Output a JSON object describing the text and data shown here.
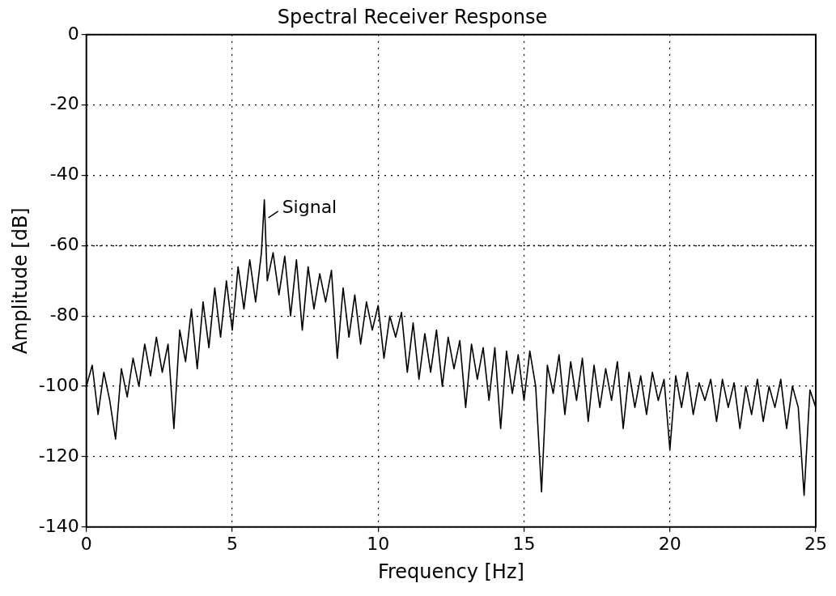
{
  "chart_data": {
    "type": "line",
    "title": "Spectral Receiver Response",
    "xlabel": "Frequency [Hz]",
    "ylabel": "Amplitude [dB]",
    "xlim": [
      0,
      25
    ],
    "xticks": [
      0,
      5,
      10,
      15,
      20,
      25
    ],
    "ylim": [
      -140,
      0
    ],
    "yticks": [
      0,
      -20,
      -40,
      -60,
      -80,
      -100,
      -120,
      -140
    ],
    "grid": true,
    "legend": false,
    "marker": "none",
    "line_style": "solid",
    "ref_lines": [
      {
        "axis": "y",
        "value": -60,
        "line_style": "dotted",
        "color": "#000000"
      }
    ],
    "annotations": [
      {
        "text": "Signal",
        "x": 6.1,
        "y": -47
      }
    ],
    "series": [
      {
        "color": "#000000",
        "x": [
          0,
          0.2,
          0.4,
          0.6,
          0.8,
          1.0,
          1.2,
          1.4,
          1.6,
          1.8,
          2.0,
          2.2,
          2.4,
          2.6,
          2.8,
          3.0,
          3.2,
          3.4,
          3.6,
          3.8,
          4.0,
          4.2,
          4.4,
          4.6,
          4.8,
          5.0,
          5.2,
          5.4,
          5.6,
          5.8,
          6.0,
          6.1,
          6.2,
          6.4,
          6.6,
          6.8,
          7.0,
          7.2,
          7.4,
          7.6,
          7.8,
          8.0,
          8.2,
          8.4,
          8.6,
          8.8,
          9.0,
          9.2,
          9.4,
          9.6,
          9.8,
          10.0,
          10.2,
          10.4,
          10.6,
          10.8,
          11.0,
          11.2,
          11.4,
          11.6,
          11.8,
          12.0,
          12.2,
          12.4,
          12.6,
          12.8,
          13.0,
          13.2,
          13.4,
          13.6,
          13.8,
          14.0,
          14.2,
          14.4,
          14.6,
          14.8,
          15.0,
          15.2,
          15.4,
          15.6,
          15.8,
          16.0,
          16.2,
          16.4,
          16.6,
          16.8,
          17.0,
          17.2,
          17.4,
          17.6,
          17.8,
          18.0,
          18.2,
          18.4,
          18.6,
          18.8,
          19.0,
          19.2,
          19.4,
          19.6,
          19.8,
          20.0,
          20.2,
          20.4,
          20.6,
          20.8,
          21.0,
          21.2,
          21.4,
          21.6,
          21.8,
          22.0,
          22.2,
          22.4,
          22.6,
          22.8,
          23.0,
          23.2,
          23.4,
          23.6,
          23.8,
          24.0,
          24.2,
          24.4,
          24.6,
          24.8,
          25.0
        ],
        "values": [
          -100,
          -94,
          -108,
          -96,
          -104,
          -115,
          -95,
          -103,
          -92,
          -100,
          -88,
          -97,
          -86,
          -96,
          -88,
          -112,
          -84,
          -93,
          -78,
          -95,
          -76,
          -89,
          -72,
          -86,
          -70,
          -84,
          -66,
          -78,
          -64,
          -76,
          -62,
          -47,
          -70,
          -62,
          -74,
          -63,
          -80,
          -64,
          -84,
          -66,
          -78,
          -68,
          -76,
          -67,
          -92,
          -72,
          -86,
          -74,
          -88,
          -76,
          -84,
          -77,
          -92,
          -80,
          -86,
          -79,
          -96,
          -82,
          -98,
          -85,
          -96,
          -84,
          -100,
          -86,
          -95,
          -87,
          -106,
          -88,
          -98,
          -89,
          -104,
          -89,
          -112,
          -90,
          -102,
          -91,
          -104,
          -90,
          -100,
          -130,
          -94,
          -102,
          -91,
          -108,
          -93,
          -104,
          -92,
          -110,
          -94,
          -106,
          -95,
          -104,
          -93,
          -112,
          -96,
          -106,
          -97,
          -108,
          -96,
          -104,
          -98,
          -118,
          -97,
          -106,
          -96,
          -108,
          -99,
          -104,
          -98,
          -110,
          -98,
          -106,
          -99,
          -112,
          -100,
          -108,
          -98,
          -110,
          -100,
          -106,
          -98,
          -112,
          -100,
          -106,
          -131,
          -101,
          -106
        ]
      }
    ]
  }
}
